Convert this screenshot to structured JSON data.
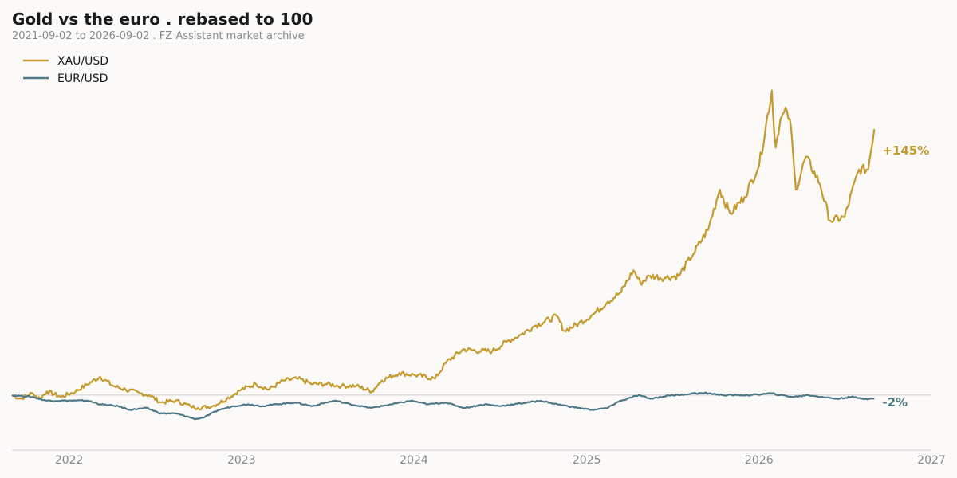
{
  "chart_data": {
    "type": "line",
    "title": "Gold vs the euro  .  rebased to 100",
    "subtitle": "2021-09-02 to 2026-09-02  .  FZ Assistant market archive",
    "xlabel": "",
    "ylabel": "",
    "xlim": [
      "2021-09-02",
      "2027-01-01"
    ],
    "ylim": [
      70,
      285
    ],
    "x_ticks": [
      "2022",
      "2023",
      "2024",
      "2025",
      "2026",
      "2027"
    ],
    "baseline": 100,
    "grid": false,
    "legend_position": "top-left",
    "series": [
      {
        "name": "XAU/USD",
        "color": "#c49a2e",
        "end_label": "+145%",
        "points": [
          [
            "2021-09-02",
            100
          ],
          [
            "2021-09-20",
            98
          ],
          [
            "2021-10-15",
            101
          ],
          [
            "2021-11-01",
            98
          ],
          [
            "2021-11-15",
            102
          ],
          [
            "2021-12-15",
            99
          ],
          [
            "2022-01-15",
            102
          ],
          [
            "2022-02-10",
            106
          ],
          [
            "2022-03-08",
            110
          ],
          [
            "2022-04-05",
            105
          ],
          [
            "2022-05-01",
            103
          ],
          [
            "2022-06-01",
            101
          ],
          [
            "2022-06-20",
            100
          ],
          [
            "2022-07-15",
            96
          ],
          [
            "2022-08-15",
            97
          ],
          [
            "2022-09-15",
            94
          ],
          [
            "2022-10-01",
            93
          ],
          [
            "2022-11-01",
            94
          ],
          [
            "2022-12-01",
            98
          ],
          [
            "2023-01-01",
            103
          ],
          [
            "2023-02-01",
            106
          ],
          [
            "2023-02-28",
            103
          ],
          [
            "2023-04-01",
            108
          ],
          [
            "2023-05-01",
            109
          ],
          [
            "2023-06-01",
            106
          ],
          [
            "2023-07-01",
            106
          ],
          [
            "2023-08-01",
            105
          ],
          [
            "2023-09-01",
            105
          ],
          [
            "2023-10-05",
            102
          ],
          [
            "2023-10-25",
            108
          ],
          [
            "2023-12-01",
            112
          ],
          [
            "2024-01-01",
            111
          ],
          [
            "2024-02-15",
            109
          ],
          [
            "2024-03-10",
            118
          ],
          [
            "2024-04-15",
            125
          ],
          [
            "2024-05-20",
            124
          ],
          [
            "2024-06-15",
            124
          ],
          [
            "2024-07-15",
            129
          ],
          [
            "2024-08-15",
            133
          ],
          [
            "2024-09-15",
            138
          ],
          [
            "2024-10-30",
            143
          ],
          [
            "2024-11-15",
            135
          ],
          [
            "2024-12-15",
            139
          ],
          [
            "2025-01-15",
            144
          ],
          [
            "2025-02-15",
            151
          ],
          [
            "2025-03-15",
            156
          ],
          [
            "2025-04-10",
            168
          ],
          [
            "2025-04-25",
            161
          ],
          [
            "2025-05-15",
            165
          ],
          [
            "2025-06-15",
            164
          ],
          [
            "2025-07-15",
            165
          ],
          [
            "2025-08-15",
            177
          ],
          [
            "2025-09-15",
            190
          ],
          [
            "2025-10-10",
            212
          ],
          [
            "2025-11-01",
            199
          ],
          [
            "2025-12-01",
            208
          ],
          [
            "2026-01-01",
            225
          ],
          [
            "2026-01-28",
            266
          ],
          [
            "2026-02-05",
            235
          ],
          [
            "2026-02-15",
            250
          ],
          [
            "2026-03-01",
            255
          ],
          [
            "2026-03-10",
            245
          ],
          [
            "2026-03-20",
            212
          ],
          [
            "2026-04-10",
            230
          ],
          [
            "2026-05-10",
            215
          ],
          [
            "2026-06-01",
            195
          ],
          [
            "2026-07-01",
            197
          ],
          [
            "2026-08-01",
            223
          ],
          [
            "2026-08-20",
            223
          ],
          [
            "2026-09-02",
            245
          ]
        ]
      },
      {
        "name": "EUR/USD",
        "color": "#4f7886",
        "end_label": "-2%",
        "points": [
          [
            "2021-09-02",
            100
          ],
          [
            "2021-10-15",
            99
          ],
          [
            "2021-11-15",
            97
          ],
          [
            "2021-12-15",
            97
          ],
          [
            "2022-01-15",
            97
          ],
          [
            "2022-02-10",
            97
          ],
          [
            "2022-03-08",
            95
          ],
          [
            "2022-04-15",
            94
          ],
          [
            "2022-05-10",
            92
          ],
          [
            "2022-06-15",
            93
          ],
          [
            "2022-07-14",
            90
          ],
          [
            "2022-08-15",
            90
          ],
          [
            "2022-09-27",
            87
          ],
          [
            "2022-10-15",
            88
          ],
          [
            "2022-11-15",
            92
          ],
          [
            "2022-12-15",
            94
          ],
          [
            "2023-01-15",
            95
          ],
          [
            "2023-02-15",
            94
          ],
          [
            "2023-03-15",
            95
          ],
          [
            "2023-04-25",
            96
          ],
          [
            "2023-05-31",
            94
          ],
          [
            "2023-06-30",
            96
          ],
          [
            "2023-07-18",
            97
          ],
          [
            "2023-08-20",
            95
          ],
          [
            "2023-10-03",
            93
          ],
          [
            "2023-11-15",
            95
          ],
          [
            "2023-12-27",
            97
          ],
          [
            "2024-01-31",
            95
          ],
          [
            "2024-03-08",
            96
          ],
          [
            "2024-04-16",
            93
          ],
          [
            "2024-05-31",
            95
          ],
          [
            "2024-06-30",
            94
          ],
          [
            "2024-08-01",
            95
          ],
          [
            "2024-09-26",
            97
          ],
          [
            "2024-10-31",
            95
          ],
          [
            "2024-12-15",
            93
          ],
          [
            "2025-01-13",
            92
          ],
          [
            "2025-02-15",
            93
          ],
          [
            "2025-03-05",
            96
          ],
          [
            "2025-04-21",
            100
          ],
          [
            "2025-05-15",
            98
          ],
          [
            "2025-06-30",
            100
          ],
          [
            "2025-07-15",
            100
          ],
          [
            "2025-08-15",
            101
          ],
          [
            "2025-09-17",
            101
          ],
          [
            "2025-10-15",
            100
          ],
          [
            "2025-11-15",
            100
          ],
          [
            "2025-12-15",
            100
          ],
          [
            "2026-01-27",
            101
          ],
          [
            "2026-02-15",
            100
          ],
          [
            "2026-03-15",
            99
          ],
          [
            "2026-04-15",
            100
          ],
          [
            "2026-05-15",
            99
          ],
          [
            "2026-06-15",
            98
          ],
          [
            "2026-07-15",
            99
          ],
          [
            "2026-08-15",
            98
          ],
          [
            "2026-09-02",
            98
          ]
        ]
      }
    ]
  }
}
